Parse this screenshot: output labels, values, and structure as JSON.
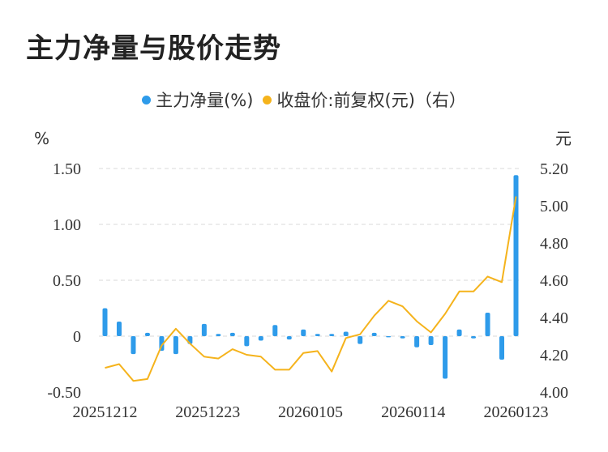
{
  "title": "主力净量与股价走势",
  "legend": {
    "left": {
      "label": "主力净量(%)",
      "color": "#2E9BEA"
    },
    "right": {
      "label": "收盘价:前复权(元)（右）",
      "color": "#F5B31C"
    }
  },
  "chart_data": {
    "type": "bar+line",
    "title": "主力净量与股价走势",
    "y_left_unit": "%",
    "y_right_unit": "元",
    "y_left_ticks": [
      "1.50",
      "1.00",
      "0.50",
      "0",
      "-0.50"
    ],
    "y_left_tick_values": [
      1.5,
      1.0,
      0.5,
      0,
      -0.5
    ],
    "y_right_ticks": [
      "5.20",
      "5.00",
      "4.80",
      "4.60",
      "4.40",
      "4.20",
      "4.00"
    ],
    "y_right_tick_values": [
      5.2,
      5.0,
      4.8,
      4.6,
      4.4,
      4.2,
      4.0
    ],
    "ylim_left": [
      -0.5,
      1.5
    ],
    "ylim_right": [
      4.0,
      5.2
    ],
    "x_tick_labels": [
      "20251212",
      "20251223",
      "20260105",
      "20260114",
      "20260123"
    ],
    "x_tick_indices": [
      0,
      8,
      16,
      24,
      32
    ],
    "grid": true,
    "legend_position": "top",
    "series": [
      {
        "name": "主力净量(%)",
        "type": "bar",
        "color": "#2E9BEA",
        "values": [
          0.25,
          0.13,
          -0.16,
          0.03,
          -0.13,
          -0.16,
          -0.07,
          0.11,
          0.02,
          0.03,
          -0.09,
          -0.04,
          0.1,
          -0.03,
          0.06,
          0.02,
          0.02,
          0.04,
          -0.07,
          0.03,
          -0.01,
          -0.02,
          -0.1,
          -0.08,
          -0.38,
          0.06,
          -0.02,
          0.21,
          -0.21,
          1.44
        ]
      },
      {
        "name": "收盘价:前复权(元)（右）",
        "type": "line",
        "color": "#F5B31C",
        "values": [
          4.13,
          4.15,
          4.06,
          4.07,
          4.25,
          4.34,
          4.26,
          4.19,
          4.18,
          4.23,
          4.2,
          4.19,
          4.12,
          4.12,
          4.21,
          4.22,
          4.11,
          4.29,
          4.31,
          4.41,
          4.49,
          4.46,
          4.38,
          4.32,
          4.42,
          4.54,
          4.54,
          4.62,
          4.59,
          5.05
        ]
      }
    ]
  }
}
